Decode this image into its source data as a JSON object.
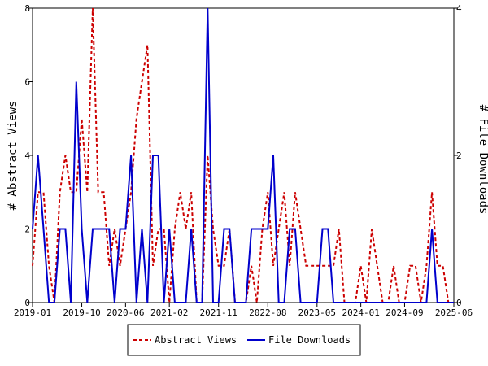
{
  "chart_data": {
    "type": "line",
    "x_axis": {
      "tick_labels": [
        "2019-01",
        "2019-10",
        "2020-06",
        "2021-02",
        "2021-11",
        "2022-08",
        "2023-05",
        "2024-01",
        "2024-09",
        "2025-06"
      ],
      "range": [
        "2019-01",
        "2025-06"
      ]
    },
    "y_left": {
      "label": "# Abstract Views",
      "ylim": [
        0,
        8
      ],
      "ticks": [
        0,
        2,
        4,
        6,
        8
      ]
    },
    "y_right": {
      "label": "# File Downloads",
      "ylim": [
        0,
        4
      ],
      "ticks": [
        0,
        2,
        4
      ]
    },
    "grid": false,
    "legend_placement": "bottom-center",
    "series": [
      {
        "name": "Abstract Views",
        "axis": "left",
        "color": "#cc0000",
        "style": "dashed",
        "x": [
          "2019-01",
          "2019-02",
          "2019-03",
          "2019-04",
          "2019-05",
          "2019-06",
          "2019-07",
          "2019-08",
          "2019-09",
          "2019-10",
          "2019-11",
          "2019-12",
          "2020-01",
          "2020-02",
          "2020-03",
          "2020-04",
          "2020-05",
          "2020-06",
          "2020-07",
          "2020-08",
          "2020-09",
          "2020-10",
          "2020-11",
          "2020-12",
          "2021-01",
          "2021-02",
          "2021-03",
          "2021-04",
          "2021-05",
          "2021-06",
          "2021-07",
          "2021-08",
          "2021-09",
          "2021-10",
          "2021-11",
          "2021-12",
          "2022-01",
          "2022-02",
          "2022-03",
          "2022-04",
          "2022-05",
          "2022-06",
          "2022-07",
          "2022-08",
          "2022-09",
          "2022-10",
          "2022-11",
          "2022-12",
          "2023-01",
          "2023-02",
          "2023-03",
          "2023-04",
          "2023-05",
          "2023-06",
          "2023-07",
          "2023-08",
          "2023-09",
          "2023-10",
          "2023-11",
          "2023-12",
          "2024-01",
          "2024-02",
          "2024-03",
          "2024-04",
          "2024-05",
          "2024-06",
          "2024-07",
          "2024-08",
          "2024-09",
          "2024-10",
          "2024-11",
          "2024-12",
          "2025-01",
          "2025-02",
          "2025-03",
          "2025-04",
          "2025-05",
          "2025-06"
        ],
        "values": [
          1,
          3,
          3,
          1,
          0,
          3,
          4,
          3,
          3,
          5,
          3,
          8,
          3,
          3,
          1,
          2,
          1,
          2,
          3,
          5,
          6,
          7,
          1,
          2,
          2,
          0,
          2,
          3,
          2,
          3,
          0,
          0,
          4,
          2,
          1,
          1,
          2,
          0,
          0,
          0,
          1,
          0,
          2,
          3,
          1,
          2,
          3,
          1,
          3,
          2,
          1,
          1,
          1,
          1,
          1,
          1,
          2,
          0,
          0,
          0,
          1,
          0,
          2,
          1,
          0,
          0,
          1,
          0,
          0,
          1,
          1,
          0,
          1,
          3,
          1,
          1,
          0,
          0
        ],
        "annotation_peak": 8
      },
      {
        "name": "File Downloads",
        "axis": "right",
        "color": "#0000cc",
        "style": "solid",
        "x": [
          "2019-01",
          "2019-02",
          "2019-03",
          "2019-04",
          "2019-05",
          "2019-06",
          "2019-07",
          "2019-08",
          "2019-09",
          "2019-10",
          "2019-11",
          "2019-12",
          "2020-01",
          "2020-02",
          "2020-03",
          "2020-04",
          "2020-05",
          "2020-06",
          "2020-07",
          "2020-08",
          "2020-09",
          "2020-10",
          "2020-11",
          "2020-12",
          "2021-01",
          "2021-02",
          "2021-03",
          "2021-04",
          "2021-05",
          "2021-06",
          "2021-07",
          "2021-08",
          "2021-09",
          "2021-10",
          "2021-11",
          "2021-12",
          "2022-01",
          "2022-02",
          "2022-03",
          "2022-04",
          "2022-05",
          "2022-06",
          "2022-07",
          "2022-08",
          "2022-09",
          "2022-10",
          "2022-11",
          "2022-12",
          "2023-01",
          "2023-02",
          "2023-03",
          "2023-04",
          "2023-05",
          "2023-06",
          "2023-07",
          "2023-08",
          "2023-09",
          "2023-10",
          "2023-11",
          "2023-12",
          "2024-01",
          "2024-02",
          "2024-03",
          "2024-04",
          "2024-05",
          "2024-06",
          "2024-07",
          "2024-08",
          "2024-09",
          "2024-10",
          "2024-11",
          "2024-12",
          "2025-01",
          "2025-02",
          "2025-03",
          "2025-04",
          "2025-05",
          "2025-06"
        ],
        "values": [
          1,
          2,
          1,
          0,
          0,
          1,
          1,
          0,
          3,
          1,
          0,
          1,
          1,
          1,
          1,
          0,
          1,
          1,
          2,
          0,
          1,
          0,
          2,
          2,
          0,
          1,
          0,
          0,
          0,
          1,
          0,
          0,
          4,
          0,
          0,
          1,
          1,
          0,
          0,
          0,
          1,
          1,
          1,
          1,
          2,
          0,
          0,
          1,
          1,
          0,
          0,
          0,
          0,
          1,
          1,
          0,
          0,
          0,
          0,
          0,
          0,
          0,
          0,
          0,
          0,
          0,
          0,
          0,
          0,
          0,
          0,
          0,
          0,
          1,
          0,
          0,
          0,
          0
        ]
      }
    ]
  }
}
